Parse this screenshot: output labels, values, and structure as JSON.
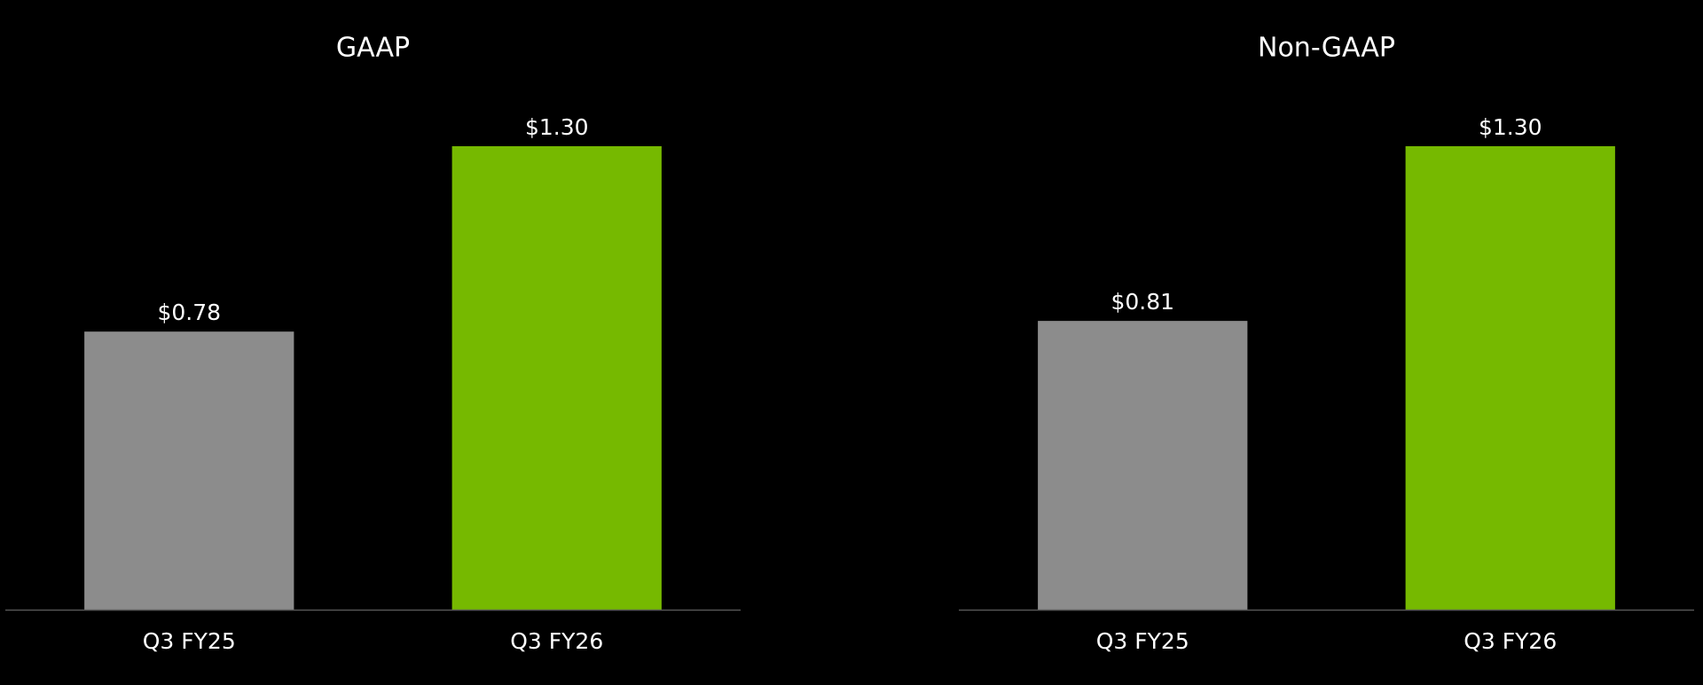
{
  "chart_data": [
    {
      "type": "bar",
      "title": "GAAP",
      "categories": [
        "Q3 FY25",
        "Q3 FY26"
      ],
      "values": [
        0.78,
        1.3
      ],
      "value_labels": [
        "$0.78",
        "$1.30"
      ],
      "colors": [
        "#8c8c8c",
        "#76b900"
      ]
    },
    {
      "type": "bar",
      "title": "Non-GAAP",
      "categories": [
        "Q3 FY25",
        "Q3 FY26"
      ],
      "values": [
        0.81,
        1.3
      ],
      "value_labels": [
        "$0.81",
        "$1.30"
      ],
      "colors": [
        "#8c8c8c",
        "#76b900"
      ]
    }
  ]
}
